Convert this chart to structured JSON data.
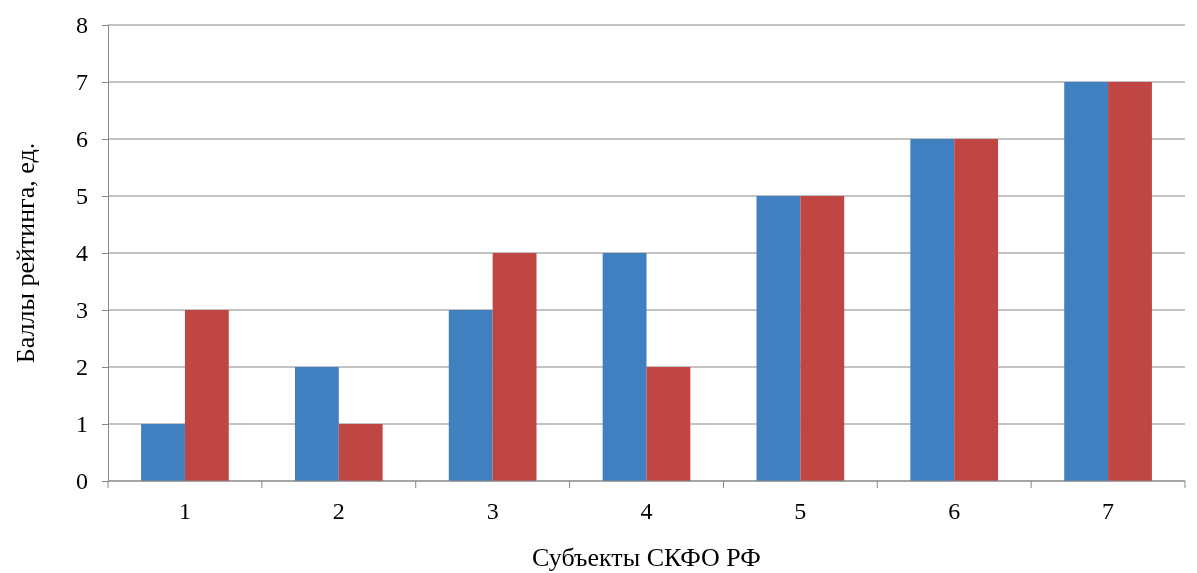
{
  "chart_data": {
    "type": "bar",
    "xlabel": "Субъекты СКФО РФ",
    "ylabel": "Баллы рейтинга, ед.",
    "categories": [
      "1",
      "2",
      "3",
      "4",
      "5",
      "6",
      "7"
    ],
    "series": [
      {
        "color": "#4180c0",
        "values": [
          1,
          2,
          3,
          4,
          5,
          6,
          7
        ]
      },
      {
        "color": "#c04644",
        "values": [
          3,
          1,
          4,
          2,
          5,
          6,
          7
        ]
      }
    ],
    "ylim": [
      0,
      8
    ],
    "yticks": [
      0,
      1,
      2,
      3,
      4,
      5,
      6,
      7,
      8
    ],
    "grid": "y"
  }
}
